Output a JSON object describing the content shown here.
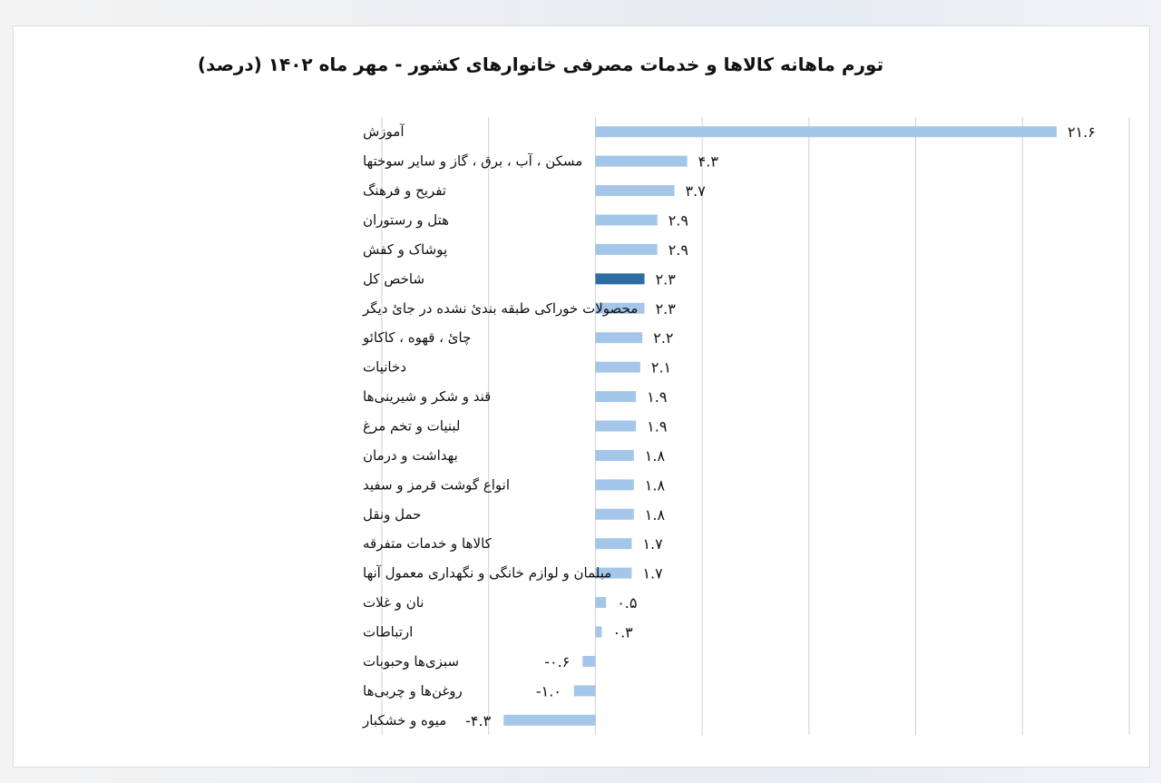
{
  "chart_data": {
    "type": "bar",
    "orientation": "horizontal",
    "title": "تورم ماهانه کالاها و خدمات مصرفی خانوارهای کشور - مهر ماه ۱۴۰۲ (درصد)",
    "xlim": [
      -10,
      25
    ],
    "grid": true,
    "legend": "none",
    "colors": {
      "default": "#a4c6e8",
      "highlight": "#2e6da4"
    },
    "highlight_index": 5,
    "categories": [
      "آموزش",
      "مسکن ، آب ، برق ، گاز و سایر سوختها",
      "تفریح و فرهنگ",
      "هتل و رستوران",
      "پوشاک و کفش",
      "شاخص کل",
      "محصولات خوراکی طبقه بندئ نشده در جائ دیگر",
      "چائ ، قهوه ، کاکائو",
      "دخانیات",
      "قند و شکر و شیرینی‌ها",
      "لبنیات و تخم مرغ",
      "بهداشت و درمان",
      "انواع گوشت قرمز و سفید",
      "حمل ونقل",
      "کالاها و خدمات متفرقه",
      "مبلمان و لوازم خانگی و نگهداری معمول آنها",
      "نان و غلات",
      "ارتباطات",
      "سبزی‌ها وحبوبات",
      "روغن‌ها و چربی‌ها",
      "میوه و خشکبار"
    ],
    "values": [
      21.6,
      4.3,
      3.7,
      2.9,
      2.9,
      2.3,
      2.3,
      2.2,
      2.1,
      1.9,
      1.9,
      1.8,
      1.8,
      1.8,
      1.7,
      1.7,
      0.5,
      0.3,
      -0.6,
      -1.0,
      -4.3
    ],
    "value_labels": [
      "۲۱.۶",
      "۴.۳",
      "۳.۷",
      "۲.۹",
      "۲.۹",
      "۲.۳",
      "۲.۳",
      "۲.۲",
      "۲.۱",
      "۱.۹",
      "۱.۹",
      "۱.۸",
      "۱.۸",
      "۱.۸",
      "۱.۷",
      "۱.۷",
      "۰.۵",
      "۰.۳",
      "-۰.۶",
      "-۱.۰",
      "-۴.۳"
    ]
  }
}
